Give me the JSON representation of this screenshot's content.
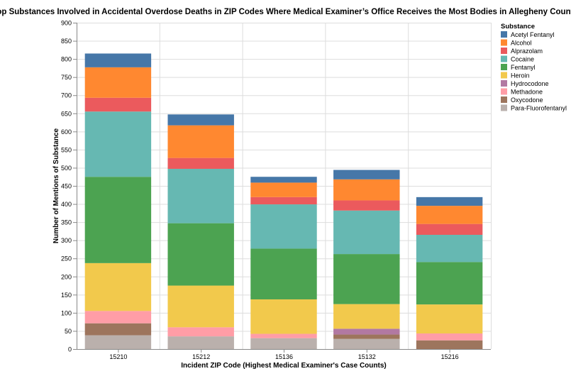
{
  "chart_data": {
    "type": "bar",
    "stacked": true,
    "title": "Top Substances Involved in Accidental Overdose Deaths in ZIP Codes Where Medical Examiner’s Office Receives the Most Bodies in Allegheny County",
    "xlabel": "Incident ZIP Code (Highest Medical Examiner's Case Counts)",
    "ylabel": "Number of Mentions of Substance",
    "ylim": [
      0,
      900
    ],
    "yticks": [
      0,
      50,
      100,
      150,
      200,
      250,
      300,
      350,
      400,
      450,
      500,
      550,
      600,
      650,
      700,
      750,
      800,
      850,
      900
    ],
    "grid": true,
    "legend_title": "Substance",
    "legend_position": "top-right",
    "categories": [
      "15210",
      "15212",
      "15136",
      "15132",
      "15216"
    ],
    "series": [
      {
        "name": "Para-Fluorofentanyl",
        "color": "#bab0ac",
        "values": [
          38,
          35,
          30,
          28,
          0
        ]
      },
      {
        "name": "Oxycodone",
        "color": "#9d755d",
        "values": [
          33,
          0,
          0,
          12,
          24
        ]
      },
      {
        "name": "Methadone",
        "color": "#ff9da6",
        "values": [
          34,
          25,
          12,
          0,
          19
        ]
      },
      {
        "name": "Hydrocodone",
        "color": "#b279a2",
        "values": [
          0,
          0,
          0,
          16,
          0
        ]
      },
      {
        "name": "Heroin",
        "color": "#f2c94c",
        "values": [
          132,
          115,
          95,
          68,
          80
        ]
      },
      {
        "name": "Fentanyl",
        "color": "#4ca351",
        "values": [
          238,
          172,
          140,
          138,
          117
        ]
      },
      {
        "name": "Cocaine",
        "color": "#66b8b2",
        "values": [
          180,
          150,
          122,
          120,
          75
        ]
      },
      {
        "name": "Alprazolam",
        "color": "#eb5a5d",
        "values": [
          38,
          30,
          20,
          28,
          30
        ]
      },
      {
        "name": "Alcohol",
        "color": "#ff8830",
        "values": [
          84,
          90,
          40,
          58,
          50
        ]
      },
      {
        "name": "Acetyl Fentanyl",
        "color": "#4677a8",
        "values": [
          38,
          30,
          16,
          26,
          24
        ]
      }
    ],
    "legend_order": [
      "Acetyl Fentanyl",
      "Alcohol",
      "Alprazolam",
      "Cocaine",
      "Fentanyl",
      "Heroin",
      "Hydrocodone",
      "Methadone",
      "Oxycodone",
      "Para-Fluorofentanyl"
    ]
  }
}
